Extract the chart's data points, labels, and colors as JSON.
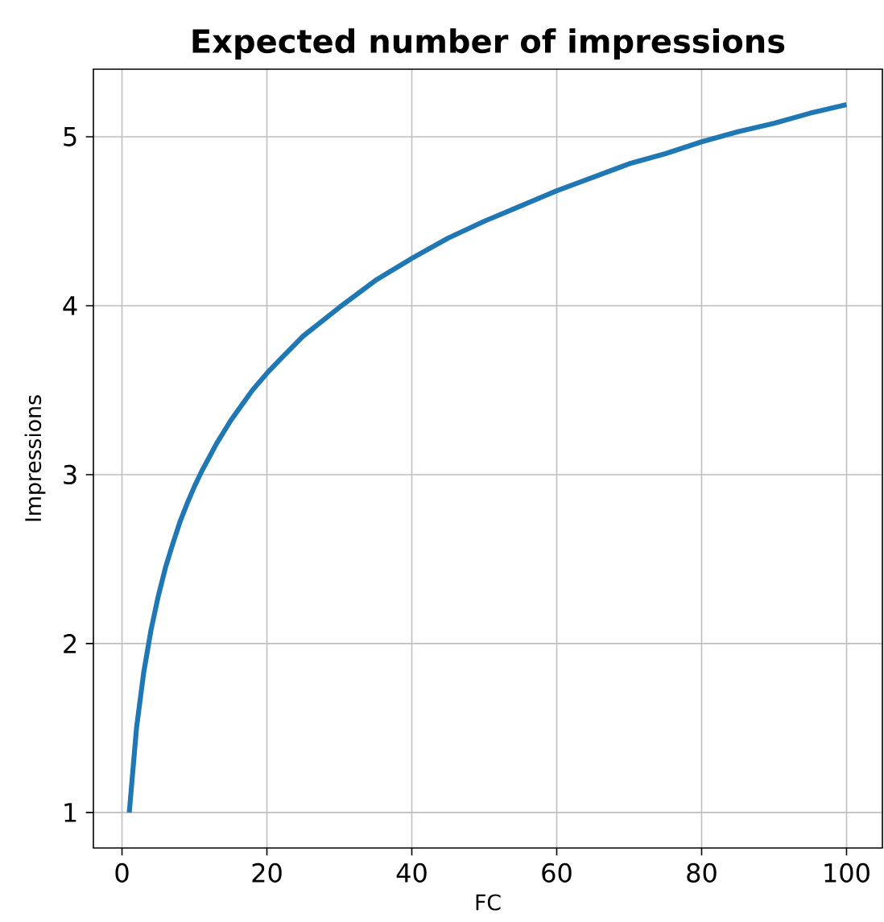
{
  "chart_data": {
    "type": "line",
    "title": "Expected number of impressions",
    "xlabel": "FC",
    "ylabel": "Impressions",
    "x": [
      1,
      2,
      3,
      4,
      5,
      6,
      7,
      8,
      9,
      10,
      11,
      12,
      13,
      14,
      15,
      16,
      18,
      20,
      22,
      25,
      30,
      35,
      40,
      45,
      50,
      55,
      60,
      65,
      70,
      75,
      80,
      85,
      90,
      95,
      100
    ],
    "series": [
      {
        "color": "#1f77b4",
        "values": [
          1,
          1.5,
          1.83,
          2.08,
          2.28,
          2.45,
          2.59,
          2.72,
          2.83,
          2.93,
          3.02,
          3.1,
          3.18,
          3.25,
          3.32,
          3.38,
          3.5,
          3.6,
          3.69,
          3.82,
          3.99,
          4.15,
          4.28,
          4.4,
          4.5,
          4.59,
          4.68,
          4.76,
          4.84,
          4.9,
          4.97,
          5.03,
          5.08,
          5.14,
          5.19
        ]
      }
    ],
    "xlim": [
      -3.95,
      104.95
    ],
    "ylim": [
      0.79,
      5.4
    ],
    "xticks": [
      0,
      20,
      40,
      60,
      80,
      100
    ],
    "yticks": [
      1,
      2,
      3,
      4,
      5
    ],
    "grid": true,
    "line_style": "solid"
  }
}
